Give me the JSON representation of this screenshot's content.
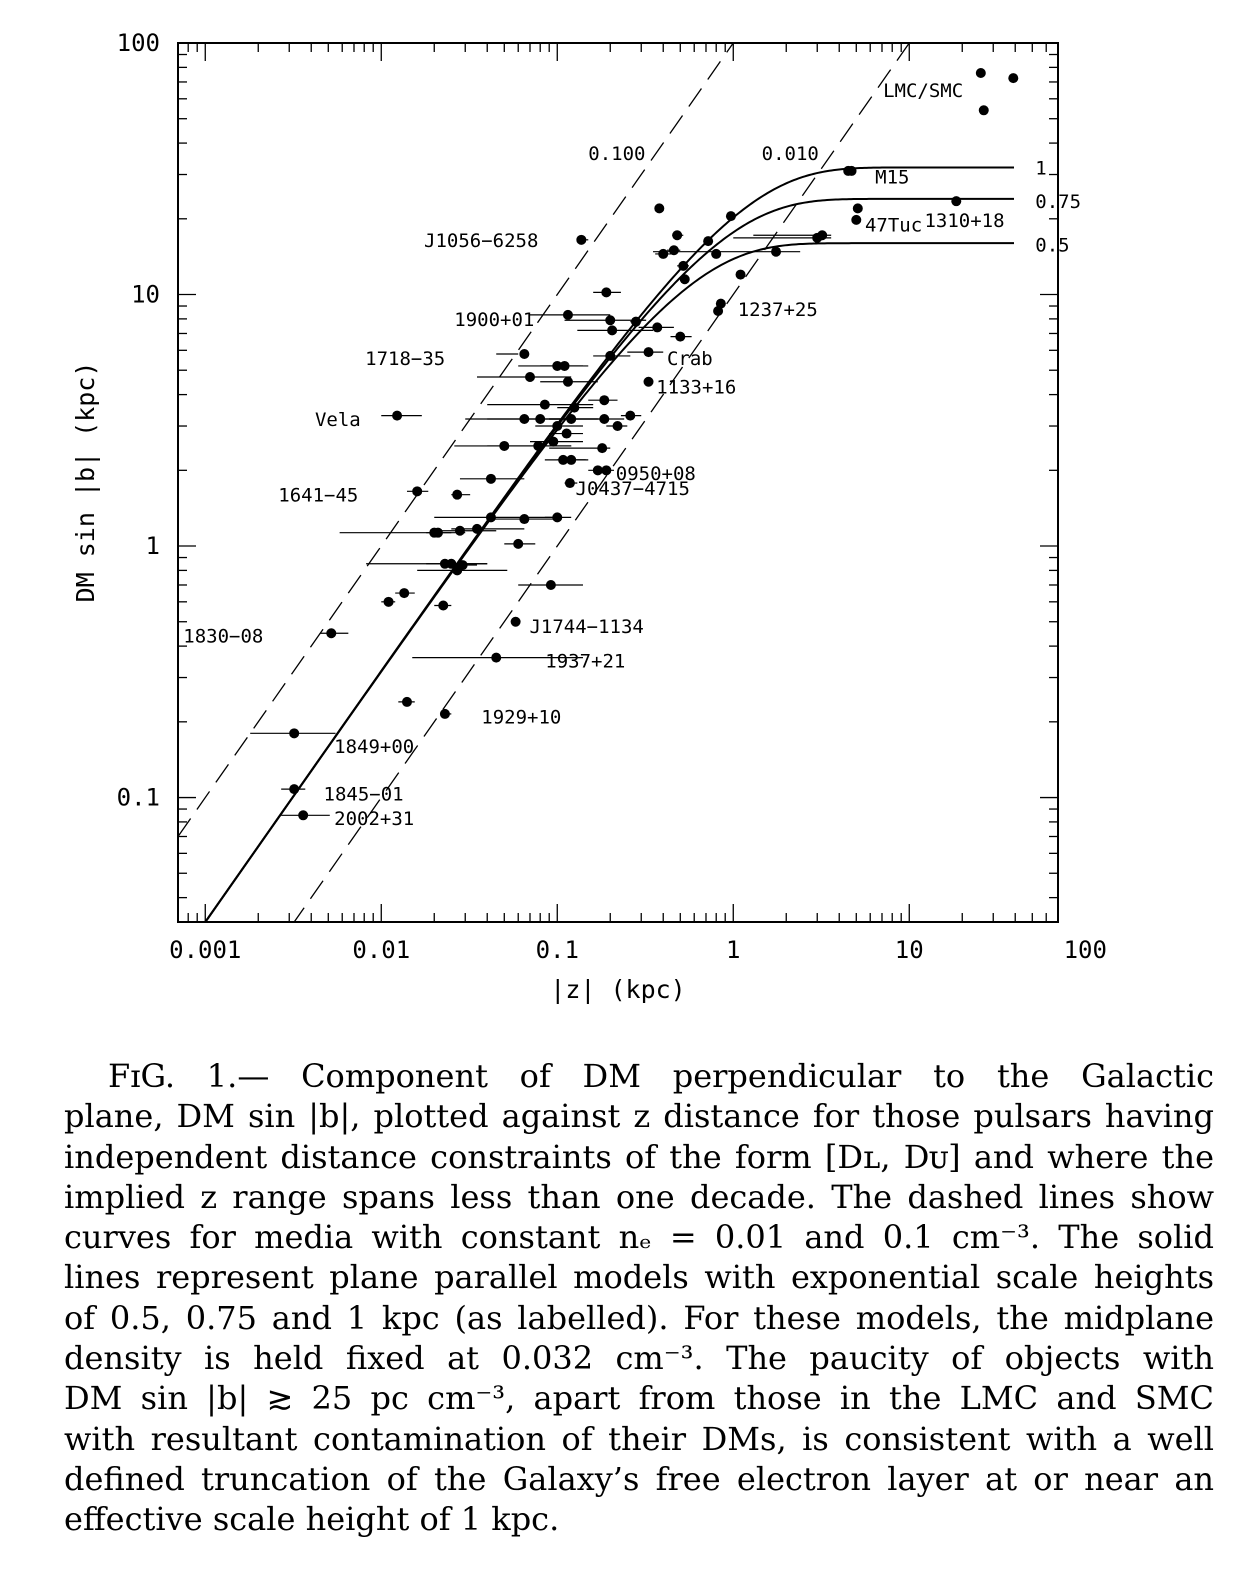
{
  "chart_data": {
    "type": "scatter",
    "xlabel": "|z| (kpc)",
    "ylabel": "DM sin |b|  (kpc)",
    "xscale": "log",
    "yscale": "log",
    "xlim": [
      0.0007,
      70
    ],
    "ylim": [
      0.032,
      100
    ],
    "x_tick_labels": [
      "0.001",
      "0.01",
      "0.1",
      "1",
      "10",
      "100"
    ],
    "x_tick_values": [
      0.001,
      0.01,
      0.1,
      1,
      10,
      100
    ],
    "y_tick_labels": [
      "0.1",
      "1",
      "10",
      "100"
    ],
    "y_tick_values": [
      0.1,
      1,
      10,
      100
    ],
    "dashed_lines": [
      {
        "label": "0.100",
        "ne": 0.1
      },
      {
        "label": "0.010",
        "ne": 0.01
      }
    ],
    "model_curves": [
      {
        "label": "1",
        "scale_height": 1,
        "n0": 0.032
      },
      {
        "label": "0.75",
        "scale_height": 0.75,
        "n0": 0.032
      },
      {
        "label": "0.5",
        "scale_height": 0.5,
        "n0": 0.032
      }
    ],
    "points": [
      {
        "x": 0.0032,
        "y": 0.18,
        "xlo": 0.0018,
        "xhi": 0.0055
      },
      {
        "x": 0.0032,
        "y": 0.108,
        "xlo": 0.0027,
        "xhi": 0.0037
      },
      {
        "x": 0.0036,
        "y": 0.085,
        "xlo": 0.0027,
        "xhi": 0.0051
      },
      {
        "x": 0.0052,
        "y": 0.45,
        "xlo": 0.0045,
        "xhi": 0.0065
      },
      {
        "x": 0.011,
        "y": 0.6,
        "xlo": 0.01,
        "xhi": 0.012
      },
      {
        "x": 0.0135,
        "y": 0.65,
        "xlo": 0.012,
        "xhi": 0.0155
      },
      {
        "x": 0.0123,
        "y": 3.3,
        "xlo": 0.01,
        "xhi": 0.017
      },
      {
        "x": 0.016,
        "y": 1.65,
        "xlo": 0.014,
        "xhi": 0.0185
      },
      {
        "x": 0.014,
        "y": 0.24,
        "xlo": 0.0125,
        "xhi": 0.0155
      },
      {
        "x": 0.02,
        "y": 1.13,
        "xlo": 0.0058,
        "xhi": 0.025
      },
      {
        "x": 0.021,
        "y": 1.13,
        "xlo": 0.018,
        "xhi": 0.03
      },
      {
        "x": 0.0225,
        "y": 0.58,
        "xlo": 0.02,
        "xhi": 0.025
      },
      {
        "x": 0.023,
        "y": 0.85,
        "xlo": 0.0082,
        "xhi": 0.04
      },
      {
        "x": 0.025,
        "y": 0.85,
        "xlo": 0.018,
        "xhi": 0.04
      },
      {
        "x": 0.027,
        "y": 0.8,
        "xlo": 0.016,
        "xhi": 0.052
      },
      {
        "x": 0.027,
        "y": 1.6,
        "xlo": 0.025,
        "xhi": 0.032
      },
      {
        "x": 0.028,
        "y": 1.15,
        "xlo": 0.02,
        "xhi": 0.045
      },
      {
        "x": 0.029,
        "y": 0.84,
        "xlo": 0.025,
        "xhi": 0.035
      },
      {
        "x": 0.023,
        "y": 0.215,
        "xlo": 0.022,
        "xhi": 0.025
      },
      {
        "x": 0.035,
        "y": 1.17,
        "xlo": 0.025,
        "xhi": 0.065
      },
      {
        "x": 0.042,
        "y": 1.3,
        "xlo": 0.02,
        "xhi": 0.1
      },
      {
        "x": 0.042,
        "y": 1.85,
        "xlo": 0.028,
        "xhi": 0.065
      },
      {
        "x": 0.045,
        "y": 0.36,
        "xlo": 0.015,
        "xhi": 0.14
      },
      {
        "x": 0.05,
        "y": 2.5,
        "xlo": 0.026,
        "xhi": 0.12
      },
      {
        "x": 0.058,
        "y": 0.5,
        "xlo": 0.056,
        "xhi": 0.06
      },
      {
        "x": 0.06,
        "y": 1.02,
        "xlo": 0.05,
        "xhi": 0.075
      },
      {
        "x": 0.065,
        "y": 1.28,
        "xlo": 0.04,
        "xhi": 0.095
      },
      {
        "x": 0.065,
        "y": 3.2,
        "xlo": 0.03,
        "xhi": 0.12
      },
      {
        "x": 0.065,
        "y": 5.8,
        "xlo": 0.045,
        "xhi": 0.06
      },
      {
        "x": 0.07,
        "y": 4.7,
        "xlo": 0.035,
        "xhi": 0.12
      },
      {
        "x": 0.078,
        "y": 2.5,
        "xlo": 0.04,
        "xhi": 0.12
      },
      {
        "x": 0.08,
        "y": 3.2,
        "xlo": 0.04,
        "xhi": 0.19
      },
      {
        "x": 0.085,
        "y": 3.65,
        "xlo": 0.04,
        "xhi": 0.16
      },
      {
        "x": 0.092,
        "y": 0.7,
        "xlo": 0.06,
        "xhi": 0.14
      },
      {
        "x": 0.095,
        "y": 2.6,
        "xlo": 0.07,
        "xhi": 0.14
      },
      {
        "x": 0.1,
        "y": 1.3,
        "xlo": 0.085,
        "xhi": 0.12
      },
      {
        "x": 0.1,
        "y": 5.2,
        "xlo": 0.06,
        "xhi": 0.15
      },
      {
        "x": 0.1,
        "y": 3.0,
        "xlo": 0.075,
        "xhi": 0.14
      },
      {
        "x": 0.108,
        "y": 2.2,
        "xlo": 0.085,
        "xhi": 0.15
      },
      {
        "x": 0.11,
        "y": 5.2,
        "xlo": 0.08,
        "xhi": 0.14
      },
      {
        "x": 0.113,
        "y": 2.8,
        "xlo": 0.09,
        "xhi": 0.14
      },
      {
        "x": 0.115,
        "y": 4.5,
        "xlo": 0.08,
        "xhi": 0.17
      },
      {
        "x": 0.115,
        "y": 8.3,
        "xlo": 0.07,
        "xhi": 0.2
      },
      {
        "x": 0.118,
        "y": 1.78,
        "xlo": 0.11,
        "xhi": 0.13
      },
      {
        "x": 0.12,
        "y": 3.2,
        "xlo": 0.09,
        "xhi": 0.17
      },
      {
        "x": 0.125,
        "y": 3.55,
        "xlo": 0.1,
        "xhi": 0.16
      },
      {
        "x": 0.12,
        "y": 2.2,
        "xlo": 0.1,
        "xhi": 0.145
      },
      {
        "x": 0.137,
        "y": 16.5,
        "xlo": 0.13,
        "xhi": 0.15
      },
      {
        "x": 0.17,
        "y": 2.0,
        "xlo": 0.15,
        "xhi": 0.2
      },
      {
        "x": 0.18,
        "y": 2.45,
        "xlo": 0.09,
        "xhi": 0.2
      },
      {
        "x": 0.185,
        "y": 3.8,
        "xlo": 0.15,
        "xhi": 0.22
      },
      {
        "x": 0.185,
        "y": 3.2,
        "xlo": 0.09,
        "xhi": 0.24
      },
      {
        "x": 0.19,
        "y": 10.2,
        "xlo": 0.16,
        "xhi": 0.23
      },
      {
        "x": 0.19,
        "y": 2.0,
        "xlo": 0.17,
        "xhi": 0.21
      },
      {
        "x": 0.2,
        "y": 5.7,
        "xlo": 0.16,
        "xhi": 0.26
      },
      {
        "x": 0.2,
        "y": 7.9,
        "xlo": 0.11,
        "xhi": 0.32
      },
      {
        "x": 0.205,
        "y": 7.2,
        "xlo": 0.13,
        "xhi": 0.35
      },
      {
        "x": 0.22,
        "y": 3.0,
        "xlo": 0.19,
        "xhi": 0.25
      },
      {
        "x": 0.26,
        "y": 3.3,
        "xlo": 0.23,
        "xhi": 0.3
      },
      {
        "x": 0.28,
        "y": 7.8,
        "xlo": 0.26,
        "xhi": 0.3
      },
      {
        "x": 0.33,
        "y": 4.5,
        "xlo": 0.32,
        "xhi": 0.34
      },
      {
        "x": 0.33,
        "y": 5.9,
        "xlo": 0.25,
        "xhi": 0.4
      },
      {
        "x": 0.37,
        "y": 7.4,
        "xlo": 0.29,
        "xhi": 0.46
      },
      {
        "x": 0.38,
        "y": 22.0,
        "xlo": 0.36,
        "xhi": 0.4
      },
      {
        "x": 0.4,
        "y": 14.5,
        "xlo": 0.36,
        "xhi": 0.45
      },
      {
        "x": 0.46,
        "y": 15.0,
        "xlo": 0.42,
        "xhi": 0.5
      },
      {
        "x": 0.48,
        "y": 17.2,
        "xlo": 0.45,
        "xhi": 0.52
      },
      {
        "x": 0.5,
        "y": 6.8,
        "xlo": 0.44,
        "xhi": 0.58
      },
      {
        "x": 0.52,
        "y": 13.0,
        "xlo": 0.48,
        "xhi": 0.56
      },
      {
        "x": 0.53,
        "y": 11.5,
        "xlo": 0.5,
        "xhi": 0.56
      },
      {
        "x": 0.72,
        "y": 16.3,
        "xlo": 0.68,
        "xhi": 0.76
      },
      {
        "x": 0.8,
        "y": 14.5,
        "xlo": 0.75,
        "xhi": 0.85
      },
      {
        "x": 0.82,
        "y": 8.6,
        "xlo": 0.79,
        "xhi": 0.85
      },
      {
        "x": 0.85,
        "y": 9.2,
        "xlo": 0.82,
        "xhi": 0.88
      },
      {
        "x": 0.97,
        "y": 20.5,
        "xlo": 0.92,
        "xhi": 1.0
      },
      {
        "x": 1.1,
        "y": 12.0,
        "xlo": 1.05,
        "xhi": 1.15
      },
      {
        "x": 1.75,
        "y": 14.8,
        "xlo": 0.35,
        "xhi": 2.4
      },
      {
        "x": 3.0,
        "y": 16.8,
        "xlo": 1.0,
        "xhi": 3.6
      },
      {
        "x": 3.2,
        "y": 17.2,
        "xlo": 1.3,
        "xhi": 3.6
      },
      {
        "x": 4.5,
        "y": 31.0,
        "xlo": 4.3,
        "xhi": 4.7
      },
      {
        "x": 4.7,
        "y": 31.0,
        "xlo": 4.5,
        "xhi": 4.9
      },
      {
        "x": 5.1,
        "y": 22.0,
        "xlo": 5.0,
        "xhi": 5.2
      },
      {
        "x": 5.0,
        "y": 19.8,
        "xlo": 4.8,
        "xhi": 5.2
      },
      {
        "x": 18.5,
        "y": 23.5,
        "xlo": 18.0,
        "xhi": 19.0
      },
      {
        "x": 25.5,
        "y": 76.0,
        "xlo": 25.0,
        "xhi": 26.0
      },
      {
        "x": 26.5,
        "y": 54.0,
        "xlo": 26.0,
        "xhi": 27.0
      },
      {
        "x": 39.0,
        "y": 72.5,
        "xlo": 38.0,
        "xhi": 40.0
      }
    ],
    "point_labels": [
      {
        "text": "J1056−6258",
        "x": 0.0175,
        "y": 16.5
      },
      {
        "text": "1900+01",
        "x": 0.026,
        "y": 8.0
      },
      {
        "text": "1718−35",
        "x": 0.0081,
        "y": 5.6
      },
      {
        "text": "Vela",
        "x": 0.0042,
        "y": 3.2
      },
      {
        "text": "1641−45",
        "x": 0.0026,
        "y": 1.6
      },
      {
        "text": "1830−08",
        "x": 0.00075,
        "y": 0.44
      },
      {
        "text": "1849+00",
        "x": 0.0054,
        "y": 0.16
      },
      {
        "text": "1845−01",
        "x": 0.0047,
        "y": 0.104
      },
      {
        "text": "2002+31",
        "x": 0.0054,
        "y": 0.083
      },
      {
        "text": "1929+10",
        "x": 0.037,
        "y": 0.21
      },
      {
        "text": "1937+21",
        "x": 0.0855,
        "y": 0.35
      },
      {
        "text": "J1744−1134",
        "x": 0.0695,
        "y": 0.48
      },
      {
        "text": "J0437−4715",
        "x": 0.127,
        "y": 1.7
      },
      {
        "text": "0950+08",
        "x": 0.215,
        "y": 1.95
      },
      {
        "text": "1133+16",
        "x": 0.365,
        "y": 4.3
      },
      {
        "text": "Crab",
        "x": 0.42,
        "y": 5.6
      },
      {
        "text": "1237+25",
        "x": 1.06,
        "y": 8.75
      },
      {
        "text": "47Tuc",
        "x": 5.6,
        "y": 19.0
      },
      {
        "text": "1310+18",
        "x": 12.2,
        "y": 19.8
      },
      {
        "text": "M15",
        "x": 6.4,
        "y": 29.5
      },
      {
        "text": "LMC/SMC",
        "x": 7.1,
        "y": 65.0
      }
    ],
    "line_labels": [
      {
        "text": "0.100",
        "x": 0.15,
        "y": 36.5
      },
      {
        "text": "0.010",
        "x": 1.45,
        "y": 36.5
      },
      {
        "text": "1",
        "x": 52.0,
        "y": 32.0
      },
      {
        "text": "0.75",
        "x": 52.0,
        "y": 23.5
      },
      {
        "text": "0.5",
        "x": 52.0,
        "y": 15.8
      }
    ]
  },
  "caption": {
    "lines": [
      "FɪG.  1.—  Component of DM perpendicular to the Galactic",
      "plane, DM sin |b|, plotted against z distance for those pulsars having",
      "independent distance constraints of the form [Dʟ, Dᴜ] and where the",
      "implied z range spans less than one decade. The dashed lines show",
      "curves for media with constant nₑ = 0.01 and 0.1 cm⁻³. The solid",
      "lines represent plane parallel models with exponential scale heights",
      "of 0.5, 0.75 and 1 kpc (as labelled). For these models, the midplane",
      "density is held fixed at 0.032 cm⁻³. The paucity of objects with",
      "DM sin |b| ≳ 25 pc cm⁻³, apart from those in the LMC and SMC",
      "with resultant contamination of their DMs, is consistent with a well",
      "defined truncation of the Galaxy’s free electron layer at or near an",
      "effective scale height of 1 kpc."
    ]
  }
}
